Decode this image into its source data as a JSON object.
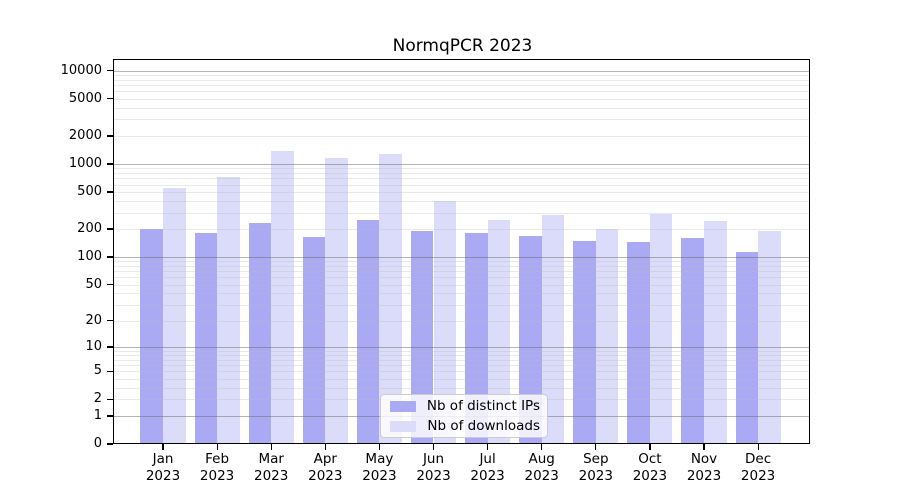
{
  "title": "NormqPCR 2023",
  "chart_data": {
    "type": "bar",
    "title": "NormqPCR 2023",
    "year": "2023",
    "months": [
      "Jan",
      "Feb",
      "Mar",
      "Apr",
      "May",
      "Jun",
      "Jul",
      "Aug",
      "Sep",
      "Oct",
      "Nov",
      "Dec"
    ],
    "categories": [
      "Jan 2023",
      "Feb 2023",
      "Mar 2023",
      "Apr 2023",
      "May 2023",
      "Jun 2023",
      "Jul 2023",
      "Aug 2023",
      "Sep 2023",
      "Oct 2023",
      "Nov 2023",
      "Dec 2023"
    ],
    "series": [
      {
        "name": "Nb of distinct IPs",
        "color": "#a9a9f4",
        "values": [
          199,
          183,
          234,
          166,
          251,
          192,
          183,
          168,
          149,
          144,
          159,
          114
        ]
      },
      {
        "name": "Nb of downloads",
        "color": "#dbdbfa",
        "values": [
          557,
          727,
          1379,
          1160,
          1281,
          404,
          251,
          284,
          199,
          291,
          246,
          191
        ]
      }
    ],
    "yscale": "log1p",
    "ylim": [
      0,
      13000
    ],
    "yticks": [
      0,
      1,
      2,
      5,
      10,
      20,
      50,
      100,
      200,
      500,
      1000,
      2000,
      5000,
      10000
    ],
    "grid": "horizontal major+minor on",
    "legend_position": "lower center",
    "xlabel": "",
    "ylabel": ""
  },
  "colors": {
    "bar_ips": "#a9a9f4",
    "bar_downloads": "#dbdbfa",
    "major_grid": "#aeaeae",
    "minor_grid": "#e9e9e9",
    "frame": "#000000"
  }
}
